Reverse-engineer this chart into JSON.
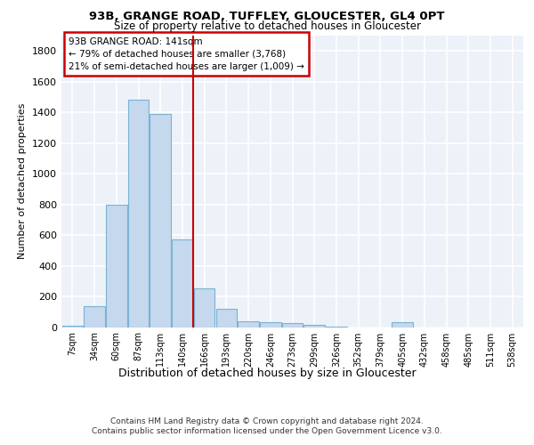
{
  "title1": "93B, GRANGE ROAD, TUFFLEY, GLOUCESTER, GL4 0PT",
  "title2": "Size of property relative to detached houses in Gloucester",
  "xlabel": "Distribution of detached houses by size in Gloucester",
  "ylabel": "Number of detached properties",
  "bar_labels": [
    "7sqm",
    "34sqm",
    "60sqm",
    "87sqm",
    "113sqm",
    "140sqm",
    "166sqm",
    "193sqm",
    "220sqm",
    "246sqm",
    "273sqm",
    "299sqm",
    "326sqm",
    "352sqm",
    "379sqm",
    "405sqm",
    "432sqm",
    "458sqm",
    "485sqm",
    "511sqm",
    "538sqm"
  ],
  "bar_values": [
    10,
    135,
    795,
    1480,
    1390,
    570,
    255,
    120,
    40,
    30,
    28,
    15,
    5,
    0,
    0,
    30,
    0,
    0,
    0,
    0,
    0
  ],
  "bar_color": "#c5d8ed",
  "bar_edge_color": "#7ab3d4",
  "vline_x": 5.5,
  "annotation_title": "93B GRANGE ROAD: 141sqm",
  "annotation_line1": "← 79% of detached houses are smaller (3,768)",
  "annotation_line2": "21% of semi-detached houses are larger (1,009) →",
  "annotation_box_color": "#ffffff",
  "annotation_box_edge_color": "#cc0000",
  "vline_color": "#cc0000",
  "footer1": "Contains HM Land Registry data © Crown copyright and database right 2024.",
  "footer2": "Contains public sector information licensed under the Open Government Licence v3.0.",
  "ylim": [
    0,
    1900
  ],
  "yticks": [
    0,
    200,
    400,
    600,
    800,
    1000,
    1200,
    1400,
    1600,
    1800
  ],
  "background_color": "#edf2f9",
  "grid_color": "#ffffff"
}
